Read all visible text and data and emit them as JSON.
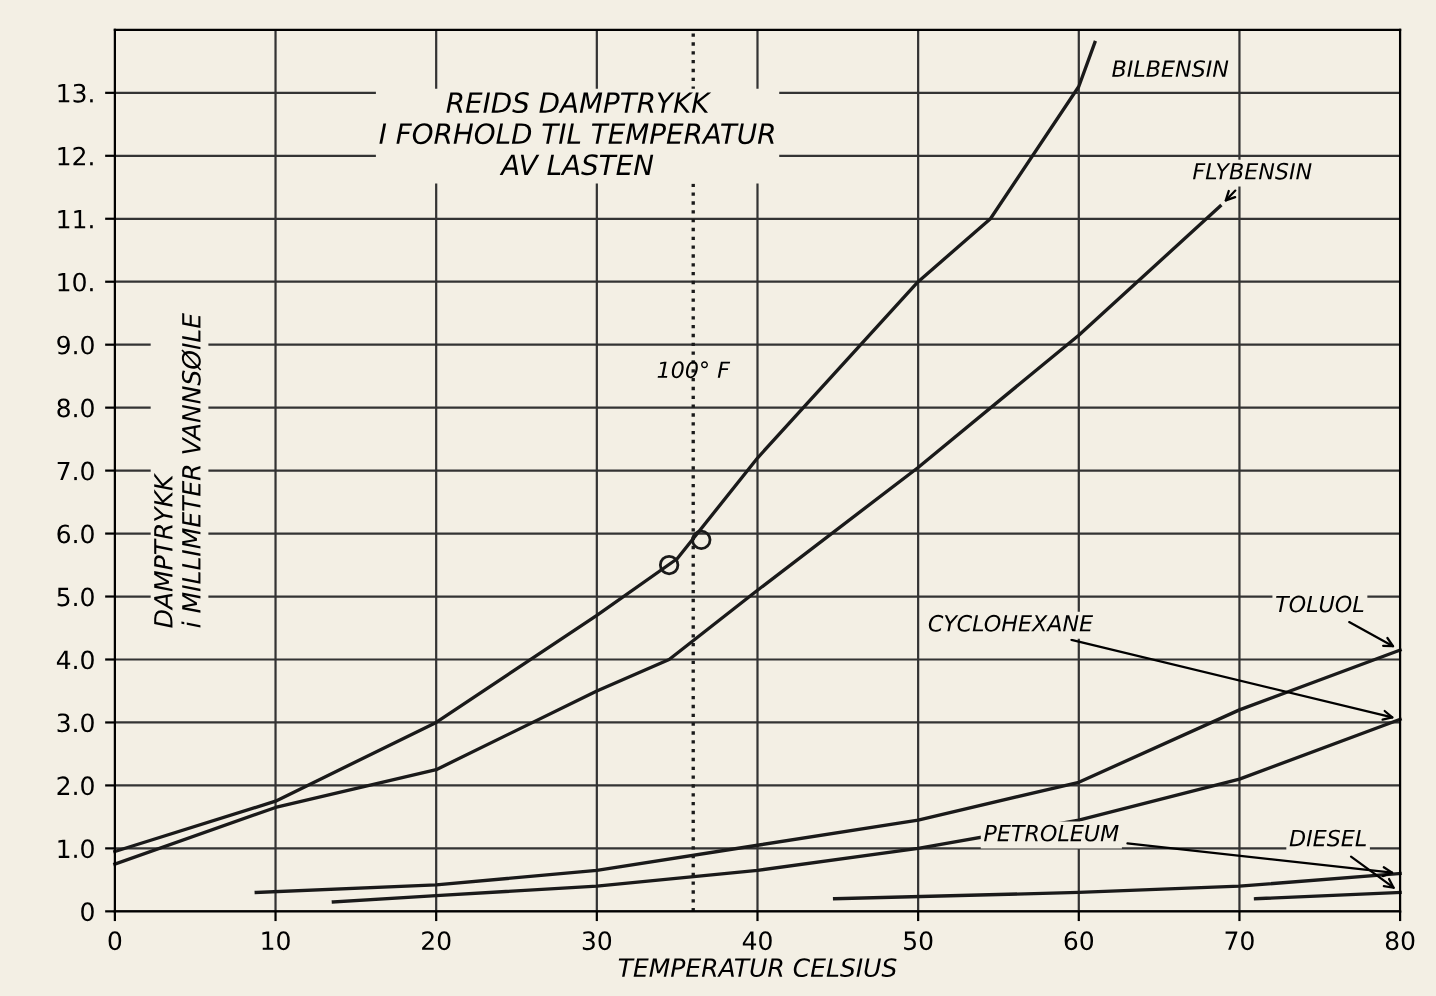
{
  "chart_data": {
    "type": "line",
    "title": "REIDS DAMPTRYKK\nI FORHOLD TIL TEMPERATUR\nAV LASTEN",
    "xlabel": "TEMPERATUR CELSIUS",
    "ylabel": "DAMPTRYKK\ni MILLIMETER VANNSØILE",
    "series": [
      {
        "name": "BILBENSIN",
        "color": "#1a1a1a",
        "x": [
          0,
          10,
          20,
          30,
          35,
          40,
          50,
          54.5,
          60,
          61
        ],
        "values": [
          0.95,
          1.75,
          3.0,
          4.7,
          5.6,
          7.2,
          10.0,
          11.0,
          13.1,
          13.8
        ]
      },
      {
        "name": "FLYBENSIN",
        "color": "#1a1a1a",
        "x": [
          0,
          10,
          20,
          30,
          34.5,
          40,
          50,
          60,
          68.8
        ],
        "values": [
          0.75,
          1.65,
          2.25,
          3.5,
          4.0,
          5.1,
          7.05,
          9.15,
          11.2
        ]
      },
      {
        "name": "TOLUOL",
        "color": "#1a1a1a",
        "x": [
          8.8,
          20,
          30,
          40,
          50,
          60,
          70,
          80
        ],
        "values": [
          0.3,
          0.42,
          0.65,
          1.05,
          1.45,
          2.05,
          3.2,
          4.15
        ]
      },
      {
        "name": "CYCLOHEXANE",
        "color": "#1a1a1a",
        "x": [
          13.6,
          20,
          30,
          40,
          50,
          60,
          70,
          80
        ],
        "values": [
          0.15,
          0.25,
          0.4,
          0.65,
          1.0,
          1.45,
          2.1,
          3.05
        ]
      },
      {
        "name": "PETROLEUM",
        "color": "#1a1a1a",
        "x": [
          44.8,
          60,
          70,
          80
        ],
        "values": [
          0.2,
          0.3,
          0.4,
          0.6
        ]
      },
      {
        "name": "DIESEL",
        "color": "#1a1a1a",
        "x": [
          71,
          80
        ],
        "values": [
          0.2,
          0.3
        ]
      },
      {
        "type": "scatter",
        "marker": "circle",
        "color": "#1a1a1a",
        "x": [
          34.5,
          36.5
        ],
        "values": [
          5.5,
          5.9
        ]
      }
    ],
    "ref_lines": [
      {
        "axis": "x",
        "value": 36,
        "label": "100° F",
        "line_style": "dotted"
      }
    ],
    "xlim": [
      0,
      80
    ],
    "ylim": [
      0,
      14
    ],
    "xticks": [
      0,
      10,
      20,
      30,
      40,
      50,
      60,
      70,
      80
    ],
    "yticks": [
      0,
      {
        "value": 1,
        "label": "1.0"
      },
      {
        "value": 2,
        "label": "2.0"
      },
      {
        "value": 3,
        "label": "3.0"
      },
      {
        "value": 4,
        "label": "4.0"
      },
      {
        "value": 5,
        "label": "5.0"
      },
      {
        "value": 6,
        "label": "6.0"
      },
      {
        "value": 7,
        "label": "7.0"
      },
      {
        "value": 8,
        "label": "8.0"
      },
      {
        "value": 9,
        "label": "9.0"
      },
      {
        "value": 10,
        "label": "10."
      },
      {
        "value": 11,
        "label": "11."
      },
      {
        "value": 12,
        "label": "12."
      },
      {
        "value": 13,
        "label": "13."
      }
    ],
    "grid": true,
    "marker": "none",
    "line_style": "solid"
  }
}
